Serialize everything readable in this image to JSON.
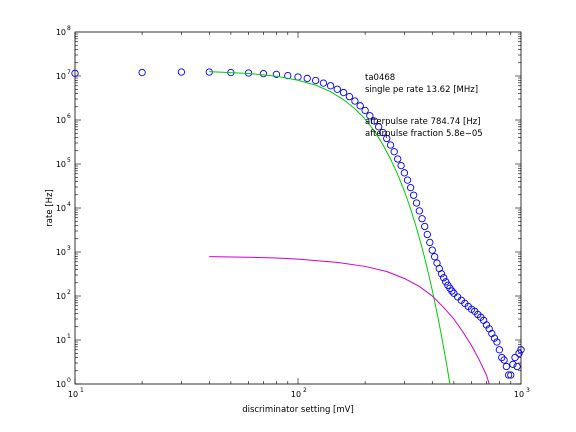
{
  "chart_data": {
    "type": "scatter",
    "xscale": "log",
    "yscale": "log",
    "xlim": [
      10,
      1000
    ],
    "ylim": [
      1,
      100000000
    ],
    "xlabel": "discriminator setting [mV]",
    "ylabel": "rate [Hz]",
    "x_ticks": [
      {
        "base": "10",
        "exp": "1"
      },
      {
        "base": "10",
        "exp": "2"
      },
      {
        "base": "10",
        "exp": "3"
      }
    ],
    "y_ticks": [
      {
        "base": "10",
        "exp": "0"
      },
      {
        "base": "10",
        "exp": "1"
      },
      {
        "base": "10",
        "exp": "2"
      },
      {
        "base": "10",
        "exp": "3"
      },
      {
        "base": "10",
        "exp": "4"
      },
      {
        "base": "10",
        "exp": "5"
      },
      {
        "base": "10",
        "exp": "6"
      },
      {
        "base": "10",
        "exp": "7"
      },
      {
        "base": "10",
        "exp": "8"
      }
    ],
    "grid": false,
    "annotations": [
      "ta0468",
      "single pe rate 13.62 [MHz]",
      "afterpulse rate 784.74 [Hz]",
      "afterpulse fraction 5.8e−05"
    ],
    "series": [
      {
        "kind": "markers",
        "marker": "open-circle",
        "color": "#0000ff",
        "points": [
          [
            10,
            11500000
          ],
          [
            20,
            12000000
          ],
          [
            30,
            12300000
          ],
          [
            40,
            12300000
          ],
          [
            50,
            12000000
          ],
          [
            60,
            11700000
          ],
          [
            70,
            11300000
          ],
          [
            80,
            10900000
          ],
          [
            90,
            10200000
          ],
          [
            100,
            9500000
          ],
          [
            110,
            8800000
          ],
          [
            120,
            7900000
          ],
          [
            130,
            6900000
          ],
          [
            140,
            6000000
          ],
          [
            150,
            5000000
          ],
          [
            160,
            4200000
          ],
          [
            170,
            3400000
          ],
          [
            180,
            2700000
          ],
          [
            190,
            2100000
          ],
          [
            200,
            1650000
          ],
          [
            210,
            1250000
          ],
          [
            220,
            950000
          ],
          [
            230,
            700000
          ],
          [
            240,
            520000
          ],
          [
            250,
            380000
          ],
          [
            260,
            270000
          ],
          [
            270,
            190000
          ],
          [
            280,
            130000
          ],
          [
            290,
            92000
          ],
          [
            300,
            63000
          ],
          [
            310,
            43000
          ],
          [
            320,
            29000
          ],
          [
            330,
            19500
          ],
          [
            340,
            13000
          ],
          [
            350,
            8600
          ],
          [
            360,
            5700
          ],
          [
            370,
            3800
          ],
          [
            380,
            2500
          ],
          [
            390,
            1650
          ],
          [
            400,
            1100
          ],
          [
            410,
            780
          ],
          [
            420,
            560
          ],
          [
            430,
            420
          ],
          [
            440,
            320
          ],
          [
            450,
            260
          ],
          [
            460,
            210
          ],
          [
            470,
            175
          ],
          [
            480,
            150
          ],
          [
            490,
            130
          ],
          [
            500,
            115
          ],
          [
            520,
            95
          ],
          [
            540,
            80
          ],
          [
            560,
            68
          ],
          [
            580,
            58
          ],
          [
            600,
            50
          ],
          [
            620,
            45
          ],
          [
            640,
            38
          ],
          [
            660,
            33
          ],
          [
            680,
            28
          ],
          [
            700,
            22
          ],
          [
            720,
            18
          ],
          [
            740,
            14
          ],
          [
            760,
            11
          ],
          [
            780,
            9
          ],
          [
            800,
            6
          ],
          [
            820,
            4
          ],
          [
            840,
            3.5
          ],
          [
            860,
            2.5
          ],
          [
            880,
            1.6
          ],
          [
            900,
            1.6
          ],
          [
            920,
            2.8
          ],
          [
            940,
            4
          ],
          [
            960,
            2.5
          ],
          [
            980,
            5
          ],
          [
            1000,
            6
          ]
        ]
      },
      {
        "kind": "line",
        "color": "#00cc00",
        "name_shown": false,
        "points": [
          [
            40,
            12600000
          ],
          [
            60,
            11400000
          ],
          [
            80,
            9900000
          ],
          [
            100,
            8000000
          ],
          [
            120,
            6200000
          ],
          [
            140,
            4400000
          ],
          [
            160,
            2900000
          ],
          [
            180,
            1800000
          ],
          [
            200,
            1050000
          ],
          [
            220,
            560000
          ],
          [
            240,
            280000
          ],
          [
            260,
            130000
          ],
          [
            280,
            58000
          ],
          [
            300,
            24000
          ],
          [
            320,
            9500
          ],
          [
            340,
            3500
          ],
          [
            360,
            1250
          ],
          [
            380,
            420
          ],
          [
            400,
            135
          ],
          [
            420,
            42
          ],
          [
            440,
            12.5
          ],
          [
            460,
            3.6
          ],
          [
            480,
            1.0
          ]
        ]
      },
      {
        "kind": "line",
        "color": "#cc00cc",
        "name_shown": false,
        "points": [
          [
            40,
            785
          ],
          [
            60,
            760
          ],
          [
            80,
            730
          ],
          [
            100,
            690
          ],
          [
            150,
            580
          ],
          [
            200,
            470
          ],
          [
            250,
            360
          ],
          [
            300,
            250
          ],
          [
            350,
            165
          ],
          [
            400,
            100
          ],
          [
            450,
            55
          ],
          [
            500,
            30
          ],
          [
            550,
            15
          ],
          [
            600,
            7.5
          ],
          [
            650,
            3.5
          ],
          [
            700,
            1.6
          ],
          [
            720,
            1.0
          ]
        ]
      }
    ]
  }
}
